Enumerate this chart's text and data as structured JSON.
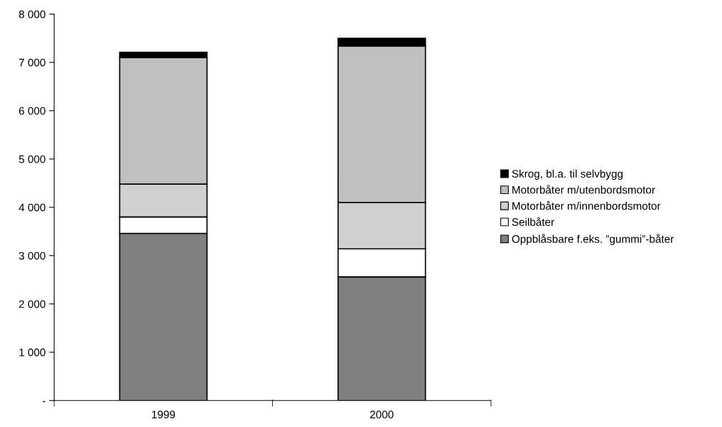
{
  "chart_data": {
    "type": "bar",
    "stacked": true,
    "categories": [
      "1999",
      "2000"
    ],
    "series": [
      {
        "name": "Oppblåsbare f.eks. ”gummi”-båter",
        "color": "#808080",
        "values": [
          3460,
          2560
        ]
      },
      {
        "name": "Seilbåter",
        "color": "#ffffff",
        "values": [
          340,
          580
        ]
      },
      {
        "name": "Motorbåter m/innenbordsmotor",
        "color": "#d0d0d0",
        "values": [
          680,
          960
        ]
      },
      {
        "name": "Motorbåter m/utenbordsmotor",
        "color": "#c0c0c0",
        "values": [
          2620,
          3240
        ]
      },
      {
        "name": "Skrog, bl.a. til selvbygg",
        "color": "#000000",
        "values": [
          110,
          160
        ]
      }
    ],
    "ylim": [
      0,
      8000
    ],
    "yticks": [
      {
        "value": 0,
        "label": "-"
      },
      {
        "value": 1000,
        "label": "1 000"
      },
      {
        "value": 2000,
        "label": "2 000"
      },
      {
        "value": 3000,
        "label": "3 000"
      },
      {
        "value": 4000,
        "label": "4 000"
      },
      {
        "value": 5000,
        "label": "5 000"
      },
      {
        "value": 6000,
        "label": "6 000"
      },
      {
        "value": 7000,
        "label": "7 000"
      },
      {
        "value": 8000,
        "label": "8 000"
      }
    ],
    "grid": false,
    "legend": "right"
  }
}
